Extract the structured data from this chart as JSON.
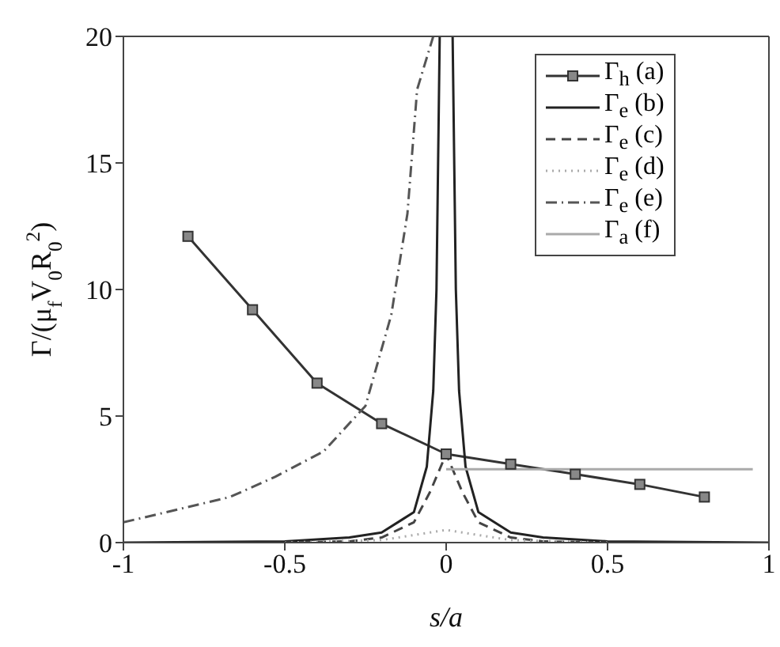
{
  "chart_data": {
    "type": "line",
    "xlabel": "s/a",
    "ylabel": "Γ/(μ$_{f}$V$_{0}$R$_{0}$$^{2}$)",
    "xlim": [
      -1,
      1
    ],
    "ylim": [
      0,
      20
    ],
    "xticks": [
      -1,
      -0.5,
      0,
      0.5,
      1
    ],
    "yticks": [
      0,
      5,
      10,
      15,
      20
    ],
    "legend": "top right",
    "series": [
      {
        "name": "Γ$_{h}$ (a)",
        "color": "#333333",
        "marker": "square",
        "line_style": "solid",
        "x": [
          -0.8,
          -0.6,
          -0.4,
          -0.2,
          0,
          0.2,
          0.4,
          0.6,
          0.8
        ],
        "values": [
          12.1,
          9.2,
          6.3,
          4.7,
          3.5,
          3.1,
          2.7,
          2.3,
          1.8
        ]
      },
      {
        "name": "Γ$_{e}$ (b)",
        "color": "#222222",
        "marker": "none",
        "line_style": "solid",
        "x": [
          -1,
          -0.5,
          -0.3,
          -0.2,
          -0.1,
          -0.06,
          -0.04,
          -0.03,
          -0.02,
          0,
          0.02,
          0.03,
          0.04,
          0.06,
          0.1,
          0.2,
          0.3,
          0.5,
          1
        ],
        "values": [
          0,
          0.05,
          0.2,
          0.4,
          1.2,
          3,
          6,
          10,
          20,
          null,
          20,
          10,
          6,
          3,
          1.2,
          0.4,
          0.2,
          0.05,
          0
        ]
      },
      {
        "name": "Γ$_{e}$ (c)",
        "color": "#444444",
        "marker": "none",
        "line_style": "dashed",
        "x": [
          -0.5,
          -0.3,
          -0.2,
          -0.1,
          -0.05,
          0,
          0.05,
          0.1,
          0.2,
          0.3,
          0.5
        ],
        "values": [
          0,
          0.05,
          0.2,
          0.8,
          2,
          3.5,
          2,
          0.8,
          0.2,
          0.05,
          0
        ]
      },
      {
        "name": "Γ$_{e}$ (d)",
        "color": "#aaaaaa",
        "marker": "none",
        "line_style": "dotted",
        "x": [
          -0.5,
          -0.2,
          -0.1,
          0,
          0.1,
          0.2,
          0.5
        ],
        "values": [
          0,
          0.1,
          0.3,
          0.5,
          0.3,
          0.1,
          0
        ]
      },
      {
        "name": "Γ$_{e}$ (e)",
        "color": "#555555",
        "marker": "none",
        "line_style": "dashdot",
        "x": [
          -1,
          -0.67,
          -0.53,
          -0.38,
          -0.25,
          -0.17,
          -0.12,
          -0.09,
          -0.04
        ],
        "values": [
          0.8,
          1.8,
          2.6,
          3.6,
          5.4,
          9,
          13,
          17.9,
          20
        ]
      },
      {
        "name": "Γ$_{a}$ (f)",
        "color": "#aaaaaa",
        "marker": "none",
        "line_style": "solid",
        "x": [
          0,
          0.95
        ],
        "values": [
          2.9,
          2.9
        ]
      }
    ]
  }
}
